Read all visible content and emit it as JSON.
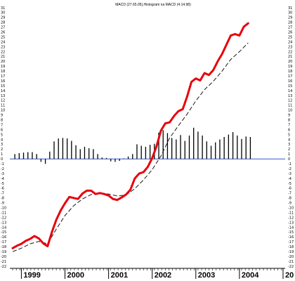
{
  "chart_data": {
    "type": "line",
    "title": "MACD (27.65.05),Histogram na MACD (4.14.98)",
    "ylim": [
      -22,
      31
    ],
    "y_ticks": [
      31,
      30,
      29,
      28,
      27,
      26,
      25,
      24,
      23,
      22,
      21,
      20,
      19,
      18,
      17,
      16,
      15,
      14,
      13,
      12,
      11,
      10,
      9,
      8,
      7,
      6,
      5,
      4,
      3,
      2,
      1,
      0,
      -1,
      -2,
      -3,
      -4,
      -5,
      -6,
      -7,
      -8,
      -9,
      -10,
      -11,
      -12,
      -13,
      -14,
      -15,
      -16,
      -17,
      -18,
      -19,
      -20,
      -21,
      -22
    ],
    "x_axis": {
      "start": 1998.8,
      "end": 2005.0,
      "year_labels": [
        {
          "text": "1999",
          "year": 1999.0
        },
        {
          "text": "2000",
          "year": 2000.0
        },
        {
          "text": "2001",
          "year": 2001.0
        },
        {
          "text": "2002",
          "year": 2002.0
        },
        {
          "text": "2003",
          "year": 2003.0
        },
        {
          "text": "2004",
          "year": 2004.0
        },
        {
          "text": "20",
          "year": 2005.0
        }
      ]
    },
    "zero_line_value": 0,
    "series": [
      {
        "role": "macd",
        "color": "#e8000b",
        "points": [
          [
            1998.8,
            -18.3
          ],
          [
            1998.9,
            -17.8
          ],
          [
            1999.0,
            -17.4
          ],
          [
            1999.1,
            -16.8
          ],
          [
            1999.2,
            -16.4
          ],
          [
            1999.3,
            -15.8
          ],
          [
            1999.4,
            -16.3
          ],
          [
            1999.5,
            -17.3
          ],
          [
            1999.6,
            -17.9
          ],
          [
            1999.7,
            -15.0
          ],
          [
            1999.8,
            -12.5
          ],
          [
            1999.9,
            -10.6
          ],
          [
            2000.0,
            -9.1
          ],
          [
            2000.1,
            -7.8
          ],
          [
            2000.2,
            -8.0
          ],
          [
            2000.3,
            -8.2
          ],
          [
            2000.4,
            -7.1
          ],
          [
            2000.5,
            -6.5
          ],
          [
            2000.6,
            -6.5
          ],
          [
            2000.7,
            -7.2
          ],
          [
            2000.8,
            -7.0
          ],
          [
            2000.9,
            -7.2
          ],
          [
            2001.0,
            -7.5
          ],
          [
            2001.1,
            -8.2
          ],
          [
            2001.2,
            -8.4
          ],
          [
            2001.3,
            -7.9
          ],
          [
            2001.4,
            -7.3
          ],
          [
            2001.5,
            -6.3
          ],
          [
            2001.6,
            -4.0
          ],
          [
            2001.7,
            -3.0
          ],
          [
            2001.8,
            -2.7
          ],
          [
            2001.9,
            -1.6
          ],
          [
            2002.0,
            0.2
          ],
          [
            2002.1,
            2.6
          ],
          [
            2002.2,
            5.8
          ],
          [
            2002.3,
            7.3
          ],
          [
            2002.4,
            7.5
          ],
          [
            2002.5,
            8.8
          ],
          [
            2002.6,
            9.8
          ],
          [
            2002.7,
            10.2
          ],
          [
            2002.8,
            12.8
          ],
          [
            2002.9,
            15.8
          ],
          [
            2003.0,
            16.5
          ],
          [
            2003.1,
            16.1
          ],
          [
            2003.2,
            17.6
          ],
          [
            2003.3,
            17.2
          ],
          [
            2003.4,
            18.2
          ],
          [
            2003.5,
            20.0
          ],
          [
            2003.6,
            21.5
          ],
          [
            2003.7,
            23.4
          ],
          [
            2003.8,
            25.3
          ],
          [
            2003.9,
            25.6
          ],
          [
            2004.0,
            25.3
          ],
          [
            2004.1,
            27.1
          ],
          [
            2004.2,
            27.8
          ]
        ]
      },
      {
        "role": "signal",
        "color": "#1a1a1a",
        "points": [
          [
            1998.8,
            -19.0
          ],
          [
            1999.0,
            -18.3
          ],
          [
            1999.2,
            -17.4
          ],
          [
            1999.4,
            -16.9
          ],
          [
            1999.6,
            -17.4
          ],
          [
            1999.8,
            -14.4
          ],
          [
            2000.0,
            -11.6
          ],
          [
            2000.2,
            -9.6
          ],
          [
            2000.4,
            -8.2
          ],
          [
            2000.6,
            -7.3
          ],
          [
            2000.8,
            -7.1
          ],
          [
            2001.0,
            -7.2
          ],
          [
            2001.2,
            -7.6
          ],
          [
            2001.4,
            -7.4
          ],
          [
            2001.6,
            -6.1
          ],
          [
            2001.8,
            -4.3
          ],
          [
            2002.0,
            -2.2
          ],
          [
            2002.2,
            0.6
          ],
          [
            2002.4,
            4.3
          ],
          [
            2002.6,
            6.8
          ],
          [
            2002.8,
            9.2
          ],
          [
            2003.0,
            11.9
          ],
          [
            2003.2,
            14.2
          ],
          [
            2003.4,
            15.9
          ],
          [
            2003.6,
            18.0
          ],
          [
            2003.8,
            20.4
          ],
          [
            2004.0,
            22.0
          ],
          [
            2004.2,
            23.8
          ]
        ]
      },
      {
        "role": "histogram",
        "color": "#000000",
        "points": [
          [
            1998.85,
            1.0
          ],
          [
            1998.95,
            1.2
          ],
          [
            1999.05,
            1.3
          ],
          [
            1999.15,
            1.4
          ],
          [
            1999.25,
            1.4
          ],
          [
            1999.35,
            1.0
          ],
          [
            1999.45,
            -0.6
          ],
          [
            1999.55,
            -1.0
          ],
          [
            1999.65,
            1.5
          ],
          [
            1999.75,
            3.6
          ],
          [
            1999.85,
            4.2
          ],
          [
            1999.95,
            4.3
          ],
          [
            2000.05,
            4.2
          ],
          [
            2000.15,
            3.7
          ],
          [
            2000.25,
            2.8
          ],
          [
            2000.35,
            2.0
          ],
          [
            2000.45,
            2.5
          ],
          [
            2000.55,
            2.2
          ],
          [
            2000.65,
            2.0
          ],
          [
            2000.75,
            1.0
          ],
          [
            2000.85,
            0.3
          ],
          [
            2000.95,
            0.2
          ],
          [
            2001.05,
            -0.5
          ],
          [
            2001.15,
            -0.6
          ],
          [
            2001.25,
            -0.4
          ],
          [
            2001.35,
            0.1
          ],
          [
            2001.45,
            0.5
          ],
          [
            2001.55,
            1.0
          ],
          [
            2001.65,
            3.0
          ],
          [
            2001.75,
            2.7
          ],
          [
            2001.85,
            2.5
          ],
          [
            2001.95,
            2.9
          ],
          [
            2002.05,
            3.1
          ],
          [
            2002.15,
            5.4
          ],
          [
            2002.25,
            5.9
          ],
          [
            2002.35,
            5.3
          ],
          [
            2002.45,
            4.3
          ],
          [
            2002.55,
            4.0
          ],
          [
            2002.65,
            4.9
          ],
          [
            2002.75,
            3.7
          ],
          [
            2002.85,
            4.8
          ],
          [
            2002.95,
            6.4
          ],
          [
            2003.05,
            5.6
          ],
          [
            2003.15,
            4.8
          ],
          [
            2003.25,
            3.6
          ],
          [
            2003.35,
            2.7
          ],
          [
            2003.45,
            3.4
          ],
          [
            2003.55,
            4.0
          ],
          [
            2003.65,
            4.5
          ],
          [
            2003.75,
            5.0
          ],
          [
            2003.85,
            5.5
          ],
          [
            2003.95,
            4.8
          ],
          [
            2004.05,
            4.1
          ],
          [
            2004.15,
            4.6
          ],
          [
            2004.25,
            4.5
          ]
        ]
      }
    ],
    "grid": false,
    "axis_colors": {
      "zero_line": "#3355cc",
      "frame": "#000000"
    }
  }
}
